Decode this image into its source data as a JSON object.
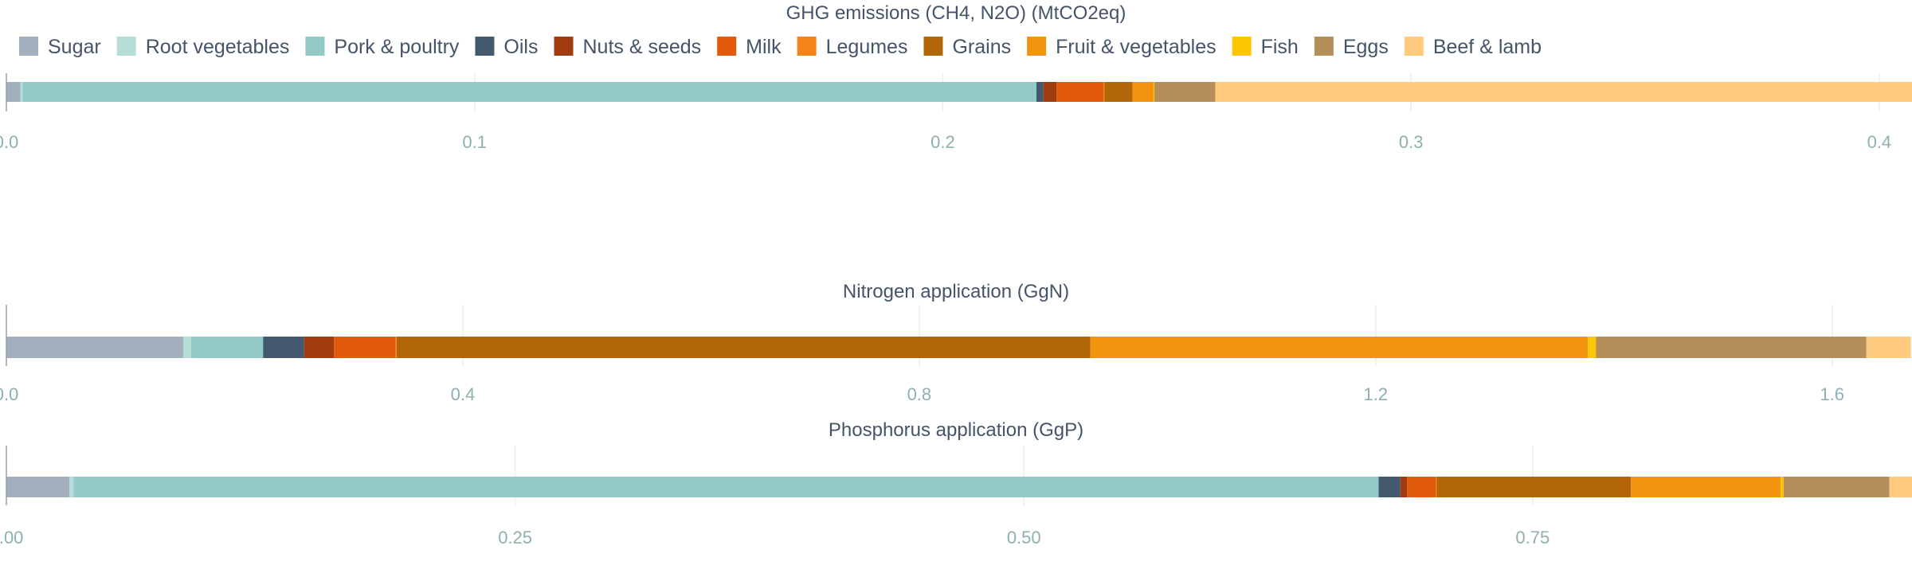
{
  "categories": [
    {
      "name": "Sugar",
      "color": "#a2afbc"
    },
    {
      "name": "Root vegetables",
      "color": "#b5dcd7"
    },
    {
      "name": "Pork & poultry",
      "color": "#93c9c6"
    },
    {
      "name": "Oils",
      "color": "#44596e"
    },
    {
      "name": "Nuts & seeds",
      "color": "#a13b10"
    },
    {
      "name": "Milk",
      "color": "#e25b0c"
    },
    {
      "name": "Legumes",
      "color": "#f68319"
    },
    {
      "name": "Grains",
      "color": "#b26607"
    },
    {
      "name": "Fruit & vegetables",
      "color": "#f2940e"
    },
    {
      "name": "Fish",
      "color": "#fcc603"
    },
    {
      "name": "Eggs",
      "color": "#b58f59"
    },
    {
      "name": "Beef & lamb",
      "color": "#fdca7e"
    }
  ],
  "chart_data": [
    {
      "type": "bar",
      "orientation": "horizontal",
      "stacked": true,
      "title": "GHG emissions (CH4, N2O) (MtCO2eq)",
      "xlim": [
        0,
        0.407
      ],
      "ticks": [
        0,
        0.1,
        0.2,
        0.3,
        0.4
      ],
      "tick_labels": [
        "0.0",
        "0.1",
        "0.2",
        "0.3",
        "0.4"
      ],
      "series": [
        {
          "name": "Sugar",
          "value": 0.003
        },
        {
          "name": "Root vegetables",
          "value": 0.0005
        },
        {
          "name": "Pork & poultry",
          "value": 0.2165
        },
        {
          "name": "Oils",
          "value": 0.0015
        },
        {
          "name": "Nuts & seeds",
          "value": 0.0028
        },
        {
          "name": "Milk",
          "value": 0.01
        },
        {
          "name": "Legumes",
          "value": 0.0002
        },
        {
          "name": "Grains",
          "value": 0.006
        },
        {
          "name": "Fruit & vegetables",
          "value": 0.0045
        },
        {
          "name": "Fish",
          "value": 0.0002
        },
        {
          "name": "Eggs",
          "value": 0.013
        },
        {
          "name": "Beef & lamb",
          "value": 0.1496
        }
      ]
    },
    {
      "type": "bar",
      "orientation": "horizontal",
      "stacked": true,
      "title": "Nitrogen application (GgN)",
      "xlim": [
        0,
        1.67
      ],
      "ticks": [
        0,
        0.4,
        0.8,
        1.2,
        1.6
      ],
      "tick_labels": [
        "0.0",
        "0.4",
        "0.8",
        "1.2",
        "1.6"
      ],
      "series": [
        {
          "name": "Sugar",
          "value": 0.155
        },
        {
          "name": "Root vegetables",
          "value": 0.007
        },
        {
          "name": "Pork & poultry",
          "value": 0.063
        },
        {
          "name": "Oils",
          "value": 0.036
        },
        {
          "name": "Nuts & seeds",
          "value": 0.026
        },
        {
          "name": "Milk",
          "value": 0.054
        },
        {
          "name": "Legumes",
          "value": 0.001
        },
        {
          "name": "Grains",
          "value": 0.608
        },
        {
          "name": "Fruit & vegetables",
          "value": 0.436
        },
        {
          "name": "Fish",
          "value": 0.007
        },
        {
          "name": "Eggs",
          "value": 0.237
        },
        {
          "name": "Beef & lamb",
          "value": 0.039
        }
      ]
    },
    {
      "type": "bar",
      "orientation": "horizontal",
      "stacked": true,
      "title": "Phosphorus application (GgP)",
      "xlim": [
        0,
        0.9364
      ],
      "ticks": [
        0,
        0.25,
        0.5,
        0.75
      ],
      "tick_labels": [
        "0.00",
        "0.25",
        "0.50",
        "0.75"
      ],
      "series": [
        {
          "name": "Sugar",
          "value": 0.031
        },
        {
          "name": "Root vegetables",
          "value": 0.002
        },
        {
          "name": "Pork & poultry",
          "value": 0.6413
        },
        {
          "name": "Oils",
          "value": 0.0107
        },
        {
          "name": "Nuts & seeds",
          "value": 0.0033
        },
        {
          "name": "Milk",
          "value": 0.014
        },
        {
          "name": "Legumes",
          "value": 0.0005
        },
        {
          "name": "Grains",
          "value": 0.0955
        },
        {
          "name": "Fruit & vegetables",
          "value": 0.0735
        },
        {
          "name": "Fish",
          "value": 0.0015
        },
        {
          "name": "Eggs",
          "value": 0.052
        },
        {
          "name": "Beef & lamb",
          "value": 0.0135
        }
      ]
    }
  ]
}
